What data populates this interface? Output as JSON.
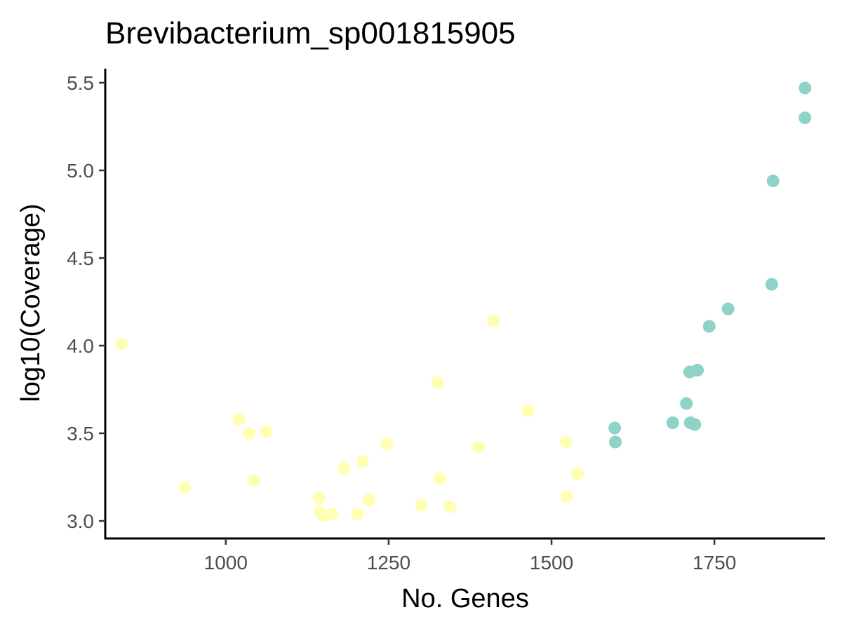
{
  "chart_data": {
    "type": "scatter",
    "title": "Brevibacterium_sp001815905",
    "xlabel": "No. Genes",
    "ylabel": "log10(Coverage)",
    "xlim": [
      815,
      1920
    ],
    "ylim": [
      2.9,
      5.58
    ],
    "x_ticks": [
      1000,
      1250,
      1500,
      1750
    ],
    "x_tick_labels": [
      "1000",
      "1250",
      "1500",
      "1750"
    ],
    "y_ticks": [
      3.0,
      3.5,
      4.0,
      4.5,
      5.0,
      5.5
    ],
    "y_tick_labels": [
      "3.0",
      "3.5",
      "4.0",
      "4.5",
      "5.0",
      "5.5"
    ],
    "grid": false,
    "legend": "none",
    "colors": {
      "group_a": "#ffffb3",
      "group_b": "#8dd3c7"
    },
    "series": [
      {
        "color": "#ffffb3",
        "points": [
          [
            840,
            4.01
          ],
          [
            937,
            3.19
          ],
          [
            1020,
            3.58
          ],
          [
            1036,
            3.5
          ],
          [
            1043,
            3.23
          ],
          [
            1062,
            3.51
          ],
          [
            1143,
            3.13
          ],
          [
            1144,
            3.05
          ],
          [
            1150,
            3.03
          ],
          [
            1163,
            3.04
          ],
          [
            1181,
            3.3
          ],
          [
            1202,
            3.04
          ],
          [
            1210,
            3.34
          ],
          [
            1220,
            3.12
          ],
          [
            1247,
            3.44
          ],
          [
            1300,
            3.09
          ],
          [
            1325,
            3.79
          ],
          [
            1328,
            3.24
          ],
          [
            1344,
            3.08
          ],
          [
            1388,
            3.42
          ],
          [
            1411,
            4.14
          ],
          [
            1464,
            3.63
          ],
          [
            1522,
            3.45
          ],
          [
            1524,
            3.14
          ],
          [
            1540,
            3.27
          ]
        ]
      },
      {
        "color": "#8dd3c7",
        "points": [
          [
            1597,
            3.53
          ],
          [
            1598,
            3.45
          ],
          [
            1686,
            3.56
          ],
          [
            1707,
            3.67
          ],
          [
            1712,
            3.85
          ],
          [
            1713,
            3.56
          ],
          [
            1720,
            3.55
          ],
          [
            1724,
            3.86
          ],
          [
            1742,
            4.11
          ],
          [
            1771,
            4.21
          ],
          [
            1838,
            4.35
          ],
          [
            1840,
            4.94
          ],
          [
            1889,
            5.47
          ],
          [
            1889,
            5.3
          ]
        ]
      }
    ]
  }
}
